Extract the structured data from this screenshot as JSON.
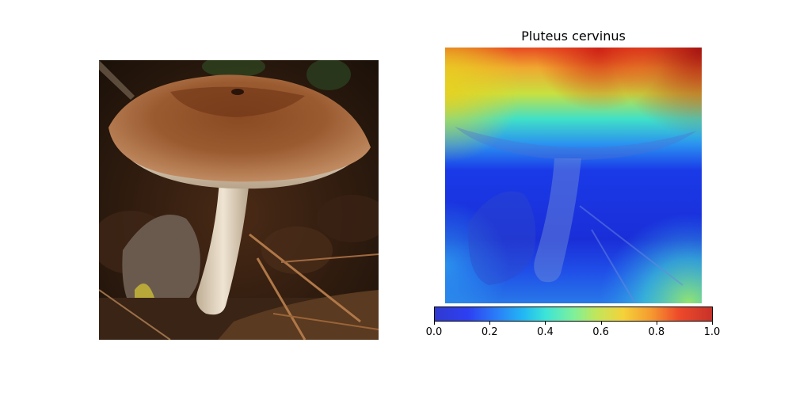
{
  "heatmap": {
    "title": "Pluteus cervinus",
    "colormap": "jet",
    "colorbar": {
      "range": [
        0.0,
        1.0
      ],
      "ticks": [
        "0.0",
        "0.2",
        "0.4",
        "0.6",
        "0.8",
        "1.0"
      ]
    }
  }
}
